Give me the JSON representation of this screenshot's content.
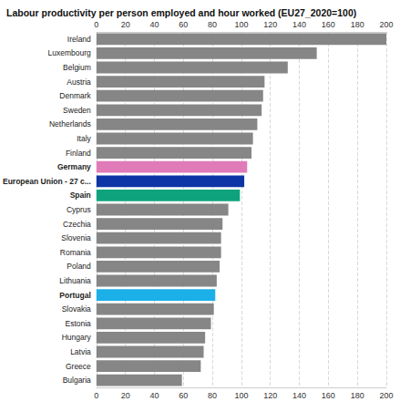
{
  "chart_data": {
    "type": "bar",
    "orientation": "horizontal",
    "title": "Labour productivity per person employed and hour worked (EU27_2020=100)",
    "categories": [
      "Ireland",
      "Luxembourg",
      "Belgium",
      "Austria",
      "Denmark",
      "Sweden",
      "Netherlands",
      "Italy",
      "Finland",
      "Germany",
      "European Union - 27 c...",
      "Spain",
      "Cyprus",
      "Czechia",
      "Slovenia",
      "Romania",
      "Poland",
      "Lithuania",
      "Portugal",
      "Slovakia",
      "Estonia",
      "Hungary",
      "Latvia",
      "Greece",
      "Bulgaria"
    ],
    "values": [
      200,
      152,
      132,
      116,
      115,
      114,
      111,
      108,
      107,
      104,
      102,
      99,
      91,
      87,
      86,
      86,
      85,
      83,
      82,
      81,
      79,
      75,
      74,
      72,
      59
    ],
    "colors": [
      "#868686",
      "#868686",
      "#868686",
      "#868686",
      "#868686",
      "#868686",
      "#868686",
      "#868686",
      "#868686",
      "#e07bb8",
      "#0e35a5",
      "#0ea37c",
      "#868686",
      "#868686",
      "#868686",
      "#868686",
      "#868686",
      "#868686",
      "#1cb0e8",
      "#868686",
      "#868686",
      "#868686",
      "#868686",
      "#868686",
      "#868686"
    ],
    "xlim": [
      0,
      200
    ],
    "xticks": [
      0,
      20,
      40,
      60,
      80,
      100,
      120,
      140,
      160,
      180,
      200
    ],
    "grid": true
  }
}
